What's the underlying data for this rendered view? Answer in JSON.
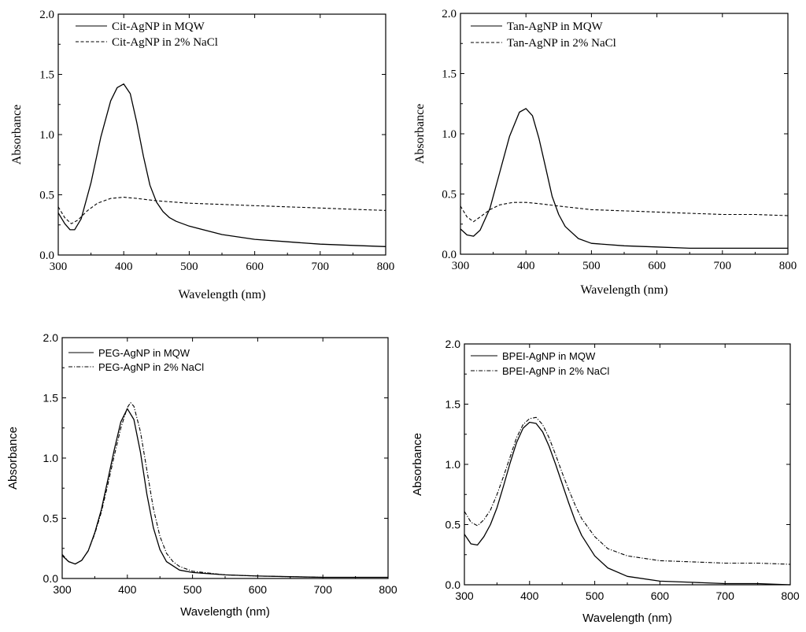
{
  "chart_data": [
    {
      "type": "line",
      "panel": "top-left",
      "xlabel": "Wavelength (nm)",
      "ylabel": "Absorbance",
      "xlim": [
        300,
        800
      ],
      "ylim": [
        0.0,
        2.0
      ],
      "xticks": [
        "300",
        "400",
        "500",
        "600",
        "700",
        "800"
      ],
      "yticks": [
        "0.0",
        "0.5",
        "1.0",
        "1.5",
        "2.0"
      ],
      "legend_position": "top-left",
      "series": [
        {
          "name": "Cit-AgNP in MQW",
          "style": "solid",
          "x": [
            300,
            310,
            318,
            325,
            335,
            350,
            365,
            380,
            390,
            400,
            410,
            420,
            430,
            440,
            450,
            460,
            470,
            480,
            500,
            550,
            600,
            650,
            700,
            750,
            800
          ],
          "y": [
            0.35,
            0.26,
            0.21,
            0.21,
            0.3,
            0.6,
            0.98,
            1.28,
            1.39,
            1.42,
            1.34,
            1.1,
            0.82,
            0.58,
            0.44,
            0.36,
            0.31,
            0.28,
            0.24,
            0.17,
            0.13,
            0.11,
            0.09,
            0.08,
            0.07
          ]
        },
        {
          "name": "Cit-AgNP in 2% NaCl",
          "style": "dashed",
          "x": [
            300,
            310,
            320,
            330,
            345,
            360,
            380,
            400,
            420,
            450,
            500,
            550,
            600,
            650,
            700,
            750,
            800
          ],
          "y": [
            0.4,
            0.31,
            0.26,
            0.29,
            0.37,
            0.43,
            0.47,
            0.48,
            0.47,
            0.45,
            0.43,
            0.42,
            0.41,
            0.4,
            0.39,
            0.38,
            0.37
          ]
        }
      ]
    },
    {
      "type": "line",
      "panel": "top-right",
      "xlabel": "Wavelength (nm)",
      "ylabel": "Absorbance",
      "xlim": [
        300,
        800
      ],
      "ylim": [
        0.0,
        2.0
      ],
      "xticks": [
        "300",
        "400",
        "500",
        "600",
        "700",
        "800"
      ],
      "yticks": [
        "0.0",
        "0.5",
        "1.0",
        "1.5",
        "2.0"
      ],
      "legend_position": "top-left",
      "series": [
        {
          "name": "Tan-AgNP in MQW",
          "style": "solid",
          "x": [
            300,
            310,
            320,
            330,
            345,
            360,
            375,
            390,
            400,
            410,
            420,
            430,
            440,
            450,
            460,
            480,
            500,
            550,
            600,
            650,
            700,
            750,
            800
          ],
          "y": [
            0.21,
            0.16,
            0.15,
            0.2,
            0.38,
            0.68,
            0.98,
            1.18,
            1.21,
            1.15,
            0.96,
            0.72,
            0.48,
            0.33,
            0.23,
            0.13,
            0.09,
            0.07,
            0.06,
            0.05,
            0.05,
            0.05,
            0.05
          ]
        },
        {
          "name": "Tan-AgNP in 2% NaCl",
          "style": "dashed",
          "x": [
            300,
            310,
            320,
            330,
            345,
            360,
            380,
            400,
            420,
            450,
            500,
            550,
            600,
            650,
            700,
            750,
            800
          ],
          "y": [
            0.4,
            0.31,
            0.27,
            0.31,
            0.37,
            0.41,
            0.43,
            0.43,
            0.42,
            0.4,
            0.37,
            0.36,
            0.35,
            0.34,
            0.33,
            0.33,
            0.32
          ]
        }
      ]
    },
    {
      "type": "line",
      "panel": "bottom-left",
      "xlabel": "Wavelength (nm)",
      "ylabel": "Absorbance",
      "xlim": [
        300,
        800
      ],
      "ylim": [
        0.0,
        2.0
      ],
      "xticks": [
        "300",
        "400",
        "500",
        "600",
        "700",
        "800"
      ],
      "yticks": [
        "0.0",
        "0.5",
        "1.0",
        "1.5",
        "2.0"
      ],
      "legend_position": "top-left",
      "series": [
        {
          "name": "PEG-AgNP in MQW",
          "style": "solid",
          "x": [
            300,
            310,
            320,
            330,
            340,
            350,
            360,
            370,
            380,
            390,
            400,
            410,
            420,
            430,
            440,
            450,
            460,
            480,
            500,
            550,
            600,
            700,
            800
          ],
          "y": [
            0.19,
            0.14,
            0.12,
            0.15,
            0.23,
            0.38,
            0.57,
            0.82,
            1.07,
            1.3,
            1.41,
            1.32,
            1.05,
            0.7,
            0.42,
            0.24,
            0.14,
            0.07,
            0.05,
            0.03,
            0.02,
            0.01,
            0.01
          ]
        },
        {
          "name": "PEG-AgNP in 2% NaCl",
          "style": "dashdot",
          "x": [
            300,
            310,
            320,
            330,
            340,
            350,
            360,
            370,
            380,
            390,
            400,
            405,
            410,
            420,
            430,
            440,
            450,
            460,
            470,
            480,
            500,
            550,
            600,
            700,
            800
          ],
          "y": [
            0.2,
            0.14,
            0.12,
            0.15,
            0.23,
            0.37,
            0.55,
            0.78,
            1.02,
            1.25,
            1.42,
            1.46,
            1.43,
            1.22,
            0.9,
            0.58,
            0.35,
            0.21,
            0.14,
            0.1,
            0.06,
            0.03,
            0.02,
            0.01,
            0.01
          ]
        }
      ]
    },
    {
      "type": "line",
      "panel": "bottom-right",
      "xlabel": "Wavelength (nm)",
      "ylabel": "Absorbance",
      "xlim": [
        300,
        800
      ],
      "ylim": [
        0.0,
        2.0
      ],
      "xticks": [
        "300",
        "400",
        "500",
        "600",
        "700",
        "800"
      ],
      "yticks": [
        "0.0",
        "0.5",
        "1.0",
        "1.5",
        "2.0"
      ],
      "legend_position": "top-left",
      "series": [
        {
          "name": "BPEI-AgNP in MQW",
          "style": "solid",
          "x": [
            300,
            310,
            320,
            330,
            340,
            350,
            360,
            370,
            380,
            390,
            400,
            410,
            420,
            430,
            440,
            450,
            460,
            470,
            480,
            500,
            520,
            550,
            600,
            650,
            700,
            750,
            800
          ],
          "y": [
            0.42,
            0.34,
            0.33,
            0.4,
            0.5,
            0.64,
            0.82,
            1.01,
            1.18,
            1.3,
            1.35,
            1.34,
            1.27,
            1.15,
            1.0,
            0.84,
            0.68,
            0.53,
            0.41,
            0.24,
            0.14,
            0.07,
            0.03,
            0.02,
            0.01,
            0.01,
            0.0
          ]
        },
        {
          "name": "BPEI-AgNP in 2% NaCl",
          "style": "dashdot",
          "x": [
            300,
            310,
            320,
            330,
            340,
            350,
            360,
            370,
            380,
            390,
            400,
            410,
            420,
            430,
            440,
            450,
            460,
            470,
            480,
            500,
            520,
            550,
            600,
            650,
            700,
            750,
            800
          ],
          "y": [
            0.61,
            0.52,
            0.49,
            0.54,
            0.62,
            0.75,
            0.9,
            1.06,
            1.22,
            1.33,
            1.38,
            1.39,
            1.33,
            1.22,
            1.08,
            0.93,
            0.79,
            0.66,
            0.55,
            0.4,
            0.3,
            0.24,
            0.2,
            0.19,
            0.18,
            0.18,
            0.17
          ]
        }
      ]
    }
  ]
}
